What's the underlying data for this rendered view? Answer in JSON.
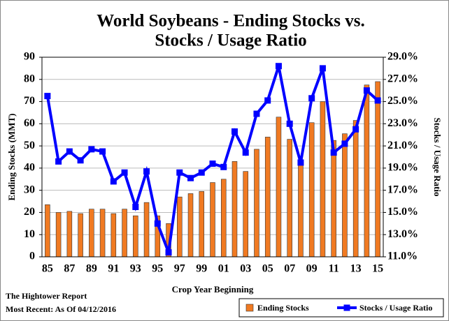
{
  "chart_data": {
    "type": "bar-line",
    "title": [
      "World Soybeans - Ending Stocks vs.",
      "Stocks / Usage Ratio"
    ],
    "x_label": "Crop Year Beginning",
    "y_label": "Ending Stocks (MMT)",
    "y2_label": "Stocks / Usage Ratio",
    "source": "The Hightower Report",
    "note": "Most Recent: As Of 04/12/2016",
    "categories": [
      "85",
      null,
      "87",
      null,
      "89",
      null,
      "91",
      null,
      "93",
      null,
      "95",
      null,
      "97",
      null,
      "99",
      null,
      "01",
      null,
      "03",
      null,
      "05",
      null,
      "07",
      null,
      "09",
      null,
      "11",
      null,
      "13",
      null,
      "15"
    ],
    "series": [
      {
        "name": "Ending Stocks",
        "type": "bar",
        "color": "#f07a22",
        "values": [
          23.5,
          20,
          20.5,
          19.5,
          21.5,
          21.5,
          19.5,
          21.5,
          18.5,
          24.5,
          18.5,
          15,
          27,
          28.5,
          29.5,
          33.5,
          35,
          43,
          38.5,
          48.5,
          54,
          63,
          53,
          42.5,
          60.5,
          70,
          52.5,
          55.5,
          61.5,
          77.5,
          79
        ]
      },
      {
        "name": "Stocks / Usage Ratio",
        "type": "line",
        "axis": "y2",
        "color": "#0000ff",
        "values": [
          25.5,
          19.6,
          20.5,
          19.7,
          20.7,
          20.5,
          17.8,
          18.6,
          15.5,
          18.7,
          14.0,
          11.4,
          18.6,
          18.1,
          18.6,
          19.4,
          19.1,
          22.3,
          20.4,
          23.9,
          25.1,
          28.2,
          23.0,
          19.5,
          25.3,
          28.0,
          20.4,
          21.2,
          22.5,
          26.0,
          25.1
        ]
      }
    ],
    "ylim": [
      0,
      90
    ],
    "yticks": [
      0,
      10,
      20,
      30,
      40,
      50,
      60,
      70,
      80,
      90
    ],
    "y2lim": [
      11,
      29
    ],
    "y2ticks": [
      {
        "value": 11,
        "label": "11.0%"
      },
      {
        "value": 13,
        "label": "13.0%"
      },
      {
        "value": 15,
        "label": "15.0%"
      },
      {
        "value": 17,
        "label": "17.0%"
      },
      {
        "value": 19,
        "label": "19.0%"
      },
      {
        "value": 21,
        "label": "21.0%"
      },
      {
        "value": 23,
        "label": "23.0%"
      },
      {
        "value": 25,
        "label": "25.0%"
      },
      {
        "value": 27,
        "label": "27.0%"
      },
      {
        "value": 29,
        "label": "29.0%"
      }
    ],
    "grid": true,
    "legend": "bottom-right"
  }
}
